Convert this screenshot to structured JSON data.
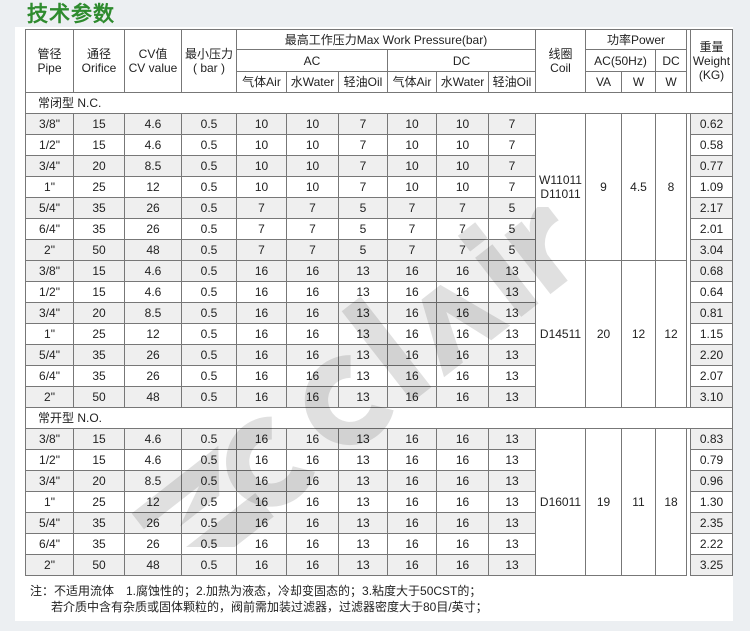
{
  "title": "技术参数",
  "watermark": "cclair",
  "header": {
    "pipe": [
      "管径",
      "Pipe"
    ],
    "orifice": [
      "通径",
      "Orifice"
    ],
    "cv": [
      "CV值",
      "CV value"
    ],
    "minp": [
      "最小压力",
      "( bar )"
    ],
    "maxp": "最高工作压力Max Work Pressure(bar)",
    "ac": "AC",
    "dc": "DC",
    "media": [
      "气体Air",
      "水Water",
      "轻油Oil",
      "气体Air",
      "水Water",
      "轻油Oil"
    ],
    "coil": [
      "线圈",
      "Coil"
    ],
    "power": "功率Power",
    "ac50": "AC(50Hz)",
    "pdc": "DC",
    "va": "VA",
    "w1": "W",
    "w2": "W",
    "weight": [
      "重量",
      "Weight",
      "(KG)"
    ]
  },
  "groups": [
    {
      "label": "常闭型 N.C.",
      "blocks": [
        {
          "coil": [
            "W11011",
            "D11011"
          ],
          "va": "9",
          "w_ac": "4.5",
          "w_dc": "8",
          "rows": [
            [
              "3/8\"",
              "15",
              "4.6",
              "0.5",
              "10",
              "10",
              "7",
              "10",
              "10",
              "7",
              "0.62"
            ],
            [
              "1/2\"",
              "15",
              "4.6",
              "0.5",
              "10",
              "10",
              "7",
              "10",
              "10",
              "7",
              "0.58"
            ],
            [
              "3/4\"",
              "20",
              "8.5",
              "0.5",
              "10",
              "10",
              "7",
              "10",
              "10",
              "7",
              "0.77"
            ],
            [
              "1\"",
              "25",
              "12",
              "0.5",
              "10",
              "10",
              "7",
              "10",
              "10",
              "7",
              "1.09"
            ],
            [
              "5/4\"",
              "35",
              "26",
              "0.5",
              "7",
              "7",
              "5",
              "7",
              "7",
              "5",
              "2.17"
            ],
            [
              "6/4\"",
              "35",
              "26",
              "0.5",
              "7",
              "7",
              "5",
              "7",
              "7",
              "5",
              "2.01"
            ],
            [
              "2\"",
              "50",
              "48",
              "0.5",
              "7",
              "7",
              "5",
              "7",
              "7",
              "5",
              "3.04"
            ]
          ]
        },
        {
          "coil": [
            "D14511"
          ],
          "va": "20",
          "w_ac": "12",
          "w_dc": "12",
          "rows": [
            [
              "3/8\"",
              "15",
              "4.6",
              "0.5",
              "16",
              "16",
              "13",
              "16",
              "16",
              "13",
              "0.68"
            ],
            [
              "1/2\"",
              "15",
              "4.6",
              "0.5",
              "16",
              "16",
              "13",
              "16",
              "16",
              "13",
              "0.64"
            ],
            [
              "3/4\"",
              "20",
              "8.5",
              "0.5",
              "16",
              "16",
              "13",
              "16",
              "16",
              "13",
              "0.81"
            ],
            [
              "1\"",
              "25",
              "12",
              "0.5",
              "16",
              "16",
              "13",
              "16",
              "16",
              "13",
              "1.15"
            ],
            [
              "5/4\"",
              "35",
              "26",
              "0.5",
              "16",
              "16",
              "13",
              "16",
              "16",
              "13",
              "2.20"
            ],
            [
              "6/4\"",
              "35",
              "26",
              "0.5",
              "16",
              "16",
              "13",
              "16",
              "16",
              "13",
              "2.07"
            ],
            [
              "2\"",
              "50",
              "48",
              "0.5",
              "16",
              "16",
              "13",
              "16",
              "16",
              "13",
              "3.10"
            ]
          ]
        }
      ]
    },
    {
      "label": "常开型 N.O.",
      "blocks": [
        {
          "coil": [
            "D16011"
          ],
          "va": "19",
          "w_ac": "11",
          "w_dc": "18",
          "rows": [
            [
              "3/8\"",
              "15",
              "4.6",
              "0.5",
              "16",
              "16",
              "13",
              "16",
              "16",
              "13",
              "0.83"
            ],
            [
              "1/2\"",
              "15",
              "4.6",
              "0.5",
              "16",
              "16",
              "13",
              "16",
              "16",
              "13",
              "0.79"
            ],
            [
              "3/4\"",
              "20",
              "8.5",
              "0.5",
              "16",
              "16",
              "13",
              "16",
              "16",
              "13",
              "0.96"
            ],
            [
              "1\"",
              "25",
              "12",
              "0.5",
              "16",
              "16",
              "13",
              "16",
              "16",
              "13",
              "1.30"
            ],
            [
              "5/4\"",
              "35",
              "26",
              "0.5",
              "16",
              "16",
              "13",
              "16",
              "16",
              "13",
              "2.35"
            ],
            [
              "6/4\"",
              "35",
              "26",
              "0.5",
              "16",
              "16",
              "13",
              "16",
              "16",
              "13",
              "2.22"
            ],
            [
              "2\"",
              "50",
              "48",
              "0.5",
              "16",
              "16",
              "13",
              "16",
              "16",
              "13",
              "3.25"
            ]
          ]
        }
      ]
    }
  ],
  "notes": [
    "注：不适用流体　1.腐蚀性的；2.加热为液态，冷却变固态的；3.粘度大于50CST的；",
    "若介质中含有杂质或固体颗粒的，阀前需加装过滤器，过滤器密度大于80目/英寸；"
  ]
}
